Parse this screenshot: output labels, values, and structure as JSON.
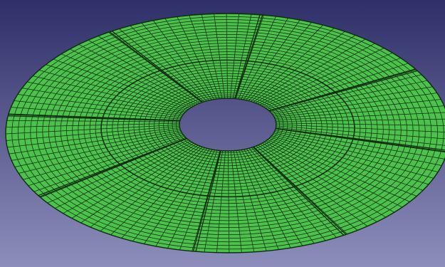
{
  "viewport": {
    "colors": {
      "background_top": "#2f2f69",
      "background_bottom": "#8e8ebc",
      "mesh_fill": "#4cc24d",
      "mesh_line": "#0d2a0d"
    },
    "model": {
      "shape": "annular-plate",
      "partitions": 8,
      "mesh": {
        "radial_divisions": 32,
        "circumferential_elements": 112
      }
    }
  }
}
